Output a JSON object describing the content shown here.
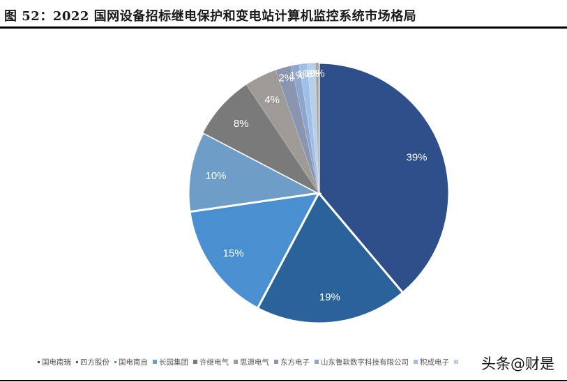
{
  "header": {
    "title": "图 52：2022 国网设备招标继电保护和变电站计算机监控系统市场格局"
  },
  "watermark": "头条@财是",
  "chart_data": {
    "type": "pie",
    "title": "2022 国网设备招标继电保护和变电站计算机监控系统市场格局",
    "figure_label": "图 52",
    "start_angle_deg": 0,
    "direction": "clockwise",
    "legend_position": "bottom",
    "slices": [
      {
        "label": "国电南瑞",
        "value": 39,
        "display": "39%",
        "color": "#2E4F8A"
      },
      {
        "label": "四方股份",
        "value": 19,
        "display": "19%",
        "color": "#2A6399"
      },
      {
        "label": "国电南自",
        "value": 15,
        "display": "15%",
        "color": "#4A90D0"
      },
      {
        "label": "长园集团",
        "value": 10,
        "display": "10%",
        "color": "#6E9DC8"
      },
      {
        "label": "许继电气",
        "value": 8,
        "display": "8%",
        "color": "#7A7A7A"
      },
      {
        "label": "思源电气",
        "value": 4,
        "display": "4%",
        "color": "#9E9A96"
      },
      {
        "label": "东方电子",
        "value": 2,
        "display": "2%",
        "color": "#8A95B0"
      },
      {
        "label": "山东鲁软数字科技有限公司",
        "value": 1,
        "display": "1%",
        "color": "#8FA6CC"
      },
      {
        "label": "积成电子",
        "value": 1,
        "display": "1%",
        "color": "#9EC0E8"
      },
      {
        "label": "",
        "value": 1,
        "display": "1%",
        "color": "#B8CFE8"
      },
      {
        "label": "",
        "value": 0.4,
        "display": "0%",
        "color": "#A8A29C"
      }
    ]
  },
  "legend": {
    "items": [
      {
        "label": "国电南瑞",
        "color": "#2E4F8A",
        "marker": "dot"
      },
      {
        "label": "四方股份",
        "color": "#2A6399",
        "marker": "dot"
      },
      {
        "label": "国电南自",
        "color": "#4A90D0",
        "marker": "dot"
      },
      {
        "label": "长园集团",
        "color": "#6E9DC8",
        "marker": "square"
      },
      {
        "label": "许继电气",
        "color": "#7A7A7A",
        "marker": "square"
      },
      {
        "label": "思源电气",
        "color": "#9E9A96",
        "marker": "square"
      },
      {
        "label": "东方电子",
        "color": "#8A95B0",
        "marker": "square"
      },
      {
        "label": "山东鲁软数字科技有限公司",
        "color": "#8FA6CC",
        "marker": "square"
      },
      {
        "label": "积成电子",
        "color": "#9EC0E8",
        "marker": "square"
      },
      {
        "label": "",
        "color": "#B8CFE8",
        "marker": "square"
      }
    ]
  }
}
